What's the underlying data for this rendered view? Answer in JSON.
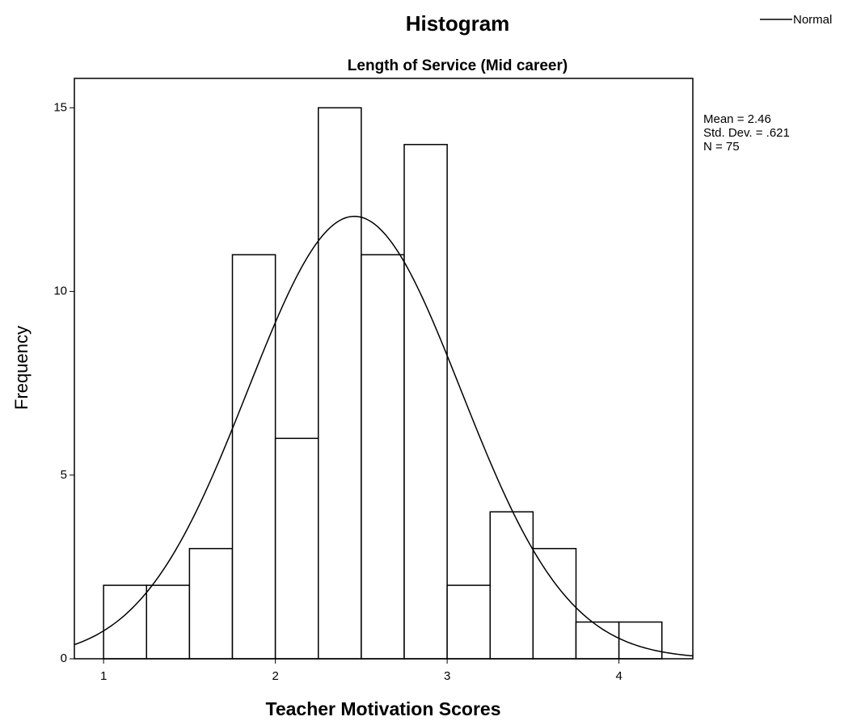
{
  "chart_data": {
    "type": "histogram",
    "title": "Histogram",
    "subtitle": "Length of Service (Mid career)",
    "x_label": "Teacher Motivation Scores",
    "y_label": "Frequency",
    "bins": [
      1.0,
      1.25,
      1.5,
      1.75,
      2.0,
      2.25,
      2.5,
      2.75,
      3.0,
      3.25,
      3.5,
      3.75,
      4.0,
      4.25
    ],
    "values": [
      2,
      2,
      3,
      11,
      6,
      15,
      11,
      14,
      2,
      4,
      3,
      1,
      1
    ],
    "xlim": [
      0.83,
      4.43
    ],
    "xticks": [
      1,
      2,
      3,
      4
    ],
    "ylim": [
      0,
      15.8
    ],
    "yticks": [
      0,
      5,
      10,
      15
    ],
    "legend": {
      "name": "Normal",
      "position": "top-right"
    },
    "stats": {
      "mean": {
        "value": 2.46,
        "label": "Mean = 2.46"
      },
      "sd": {
        "value": 0.621,
        "label": "Std. Dev. = .621"
      },
      "n": {
        "value": 75,
        "label": "N = 75"
      }
    },
    "color": "#ffffff"
  }
}
